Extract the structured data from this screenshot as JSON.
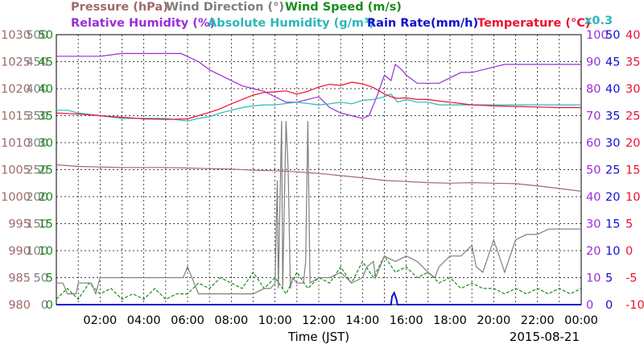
{
  "chart_data": {
    "type": "line",
    "date": "2015-08-21",
    "xlabel": "Time (JST)",
    "x_ticks": [
      "02:00",
      "04:00",
      "06:00",
      "08:00",
      "10:00",
      "12:00",
      "14:00",
      "16:00",
      "18:00",
      "20:00",
      "22:00",
      "00:00"
    ],
    "legend": [
      {
        "id": "pressure",
        "label": "Pressure (hPa)",
        "color": "#a06a6a"
      },
      {
        "id": "wind_direction",
        "label": "Wind Direction (°)",
        "color": "#7f7f7f"
      },
      {
        "id": "wind_speed",
        "label": "Wind Speed (m/s)",
        "color": "#1a8c1a"
      },
      {
        "id": "rh",
        "label": "Relative Humidity (%)",
        "color": "#9a2ed8"
      },
      {
        "id": "ah",
        "label": "Absolute Humidity (g/m³)",
        "color": "#2ab8b8"
      },
      {
        "id": "rain",
        "label": "Rain Rate(mm/h)",
        "color": "#1010d0"
      },
      {
        "id": "temp",
        "label": "Temperature (°C)",
        "color": "#ee1030"
      }
    ],
    "left_axes": [
      {
        "id": "pressure",
        "color": "#a06a6a",
        "min": 980,
        "max": 1030,
        "ticks": [
          "980",
          "985",
          "990",
          "995",
          "1000",
          "1005",
          "1010",
          "1015",
          "1020",
          "1025",
          "1030"
        ]
      },
      {
        "id": "wind_direction",
        "color": "#7f7f7f",
        "min": 0,
        "max": 500,
        "ticks": [
          "0",
          "50",
          "100",
          "150",
          "200",
          "250",
          "300",
          "350",
          "400",
          "450",
          "500"
        ]
      },
      {
        "id": "wind_speed",
        "color": "#1a8c1a",
        "min": 0,
        "max": 50,
        "ticks": [
          "0",
          "5",
          "10",
          "15",
          "20",
          "25",
          "30",
          "35",
          "40",
          "45",
          "50"
        ]
      }
    ],
    "right_axes": [
      {
        "id": "rh",
        "color": "#9a2ed8",
        "min": 0,
        "max": 100,
        "ticks": [
          "0",
          "10",
          "20",
          "30",
          "40",
          "50",
          "60",
          "70",
          "80",
          "90",
          "100"
        ]
      },
      {
        "id": "ah_rain",
        "color": "#1010d0",
        "min": 0,
        "max": 50,
        "ticks": [
          "0",
          "5",
          "10",
          "15",
          "20",
          "25",
          "30",
          "35",
          "40",
          "45",
          "50"
        ]
      },
      {
        "id": "temp",
        "color": "#ee1030",
        "min": -10,
        "max": 40,
        "ticks": [
          "-10",
          "-5",
          "0",
          "5",
          "10",
          "15",
          "20",
          "25",
          "30",
          "35",
          "40"
        ]
      }
    ],
    "ah_scale_note": "x0.3",
    "grid": true,
    "series": [
      {
        "name": "Pressure (hPa)",
        "axis": "pressure",
        "color": "#a06a6a",
        "x": [
          0,
          1,
          2,
          3,
          4,
          5,
          6,
          7,
          8,
          9,
          10,
          11,
          12,
          13,
          14,
          15,
          16,
          17,
          18,
          19,
          20,
          21,
          22,
          23,
          24
        ],
        "y": [
          1005.9,
          1005.6,
          1005.5,
          1005.4,
          1005.4,
          1005.4,
          1005.3,
          1005.2,
          1005.1,
          1004.9,
          1004.8,
          1004.6,
          1004.3,
          1003.9,
          1003.5,
          1003.0,
          1002.8,
          1002.6,
          1002.5,
          1002.6,
          1002.5,
          1002.4,
          1002.0,
          1001.5,
          1001.0
        ]
      },
      {
        "name": "Wind Direction (°)",
        "axis": "wind_direction",
        "color": "#7f7f7f",
        "x": [
          0,
          0.3,
          0.5,
          0.9,
          1.0,
          1.6,
          1.8,
          2.0,
          3.0,
          4.0,
          5.0,
          5.8,
          6.0,
          6.5,
          7.0,
          8.0,
          9.0,
          9.5,
          9.8,
          10.0,
          10.1,
          10.15,
          10.3,
          10.35,
          10.5,
          10.6,
          10.7,
          10.8,
          11.0,
          11.3,
          11.4,
          11.5,
          11.6,
          12.0,
          12.5,
          13.0,
          13.5,
          14.0,
          14.2,
          14.5,
          14.6,
          15.0,
          15.5,
          16.0,
          16.5,
          17.0,
          17.3,
          17.5,
          18.0,
          18.5,
          19.0,
          19.2,
          19.5,
          20.0,
          20.5,
          21.0,
          21.5,
          22.0,
          22.5,
          23.0,
          23.5,
          24.0
        ],
        "y": [
          40,
          40,
          20,
          20,
          40,
          40,
          20,
          50,
          50,
          50,
          50,
          50,
          70,
          20,
          20,
          20,
          20,
          30,
          30,
          40,
          230,
          30,
          340,
          30,
          340,
          250,
          30,
          50,
          40,
          40,
          80,
          340,
          40,
          50,
          50,
          60,
          40,
          50,
          70,
          80,
          50,
          90,
          80,
          90,
          80,
          60,
          50,
          70,
          90,
          90,
          110,
          70,
          60,
          120,
          60,
          120,
          130,
          130,
          140,
          140,
          140,
          140
        ]
      },
      {
        "name": "Wind Speed (m/s)",
        "axis": "wind_speed",
        "color": "#1a8c1a",
        "x": [
          0,
          0.5,
          1,
          1.5,
          2,
          2.5,
          3,
          3.5,
          4,
          4.5,
          5,
          5.5,
          6,
          6.5,
          7,
          7.5,
          8,
          8.5,
          9,
          9.5,
          10,
          10.5,
          11,
          11.5,
          12,
          12.5,
          13,
          13.5,
          14,
          14.5,
          15,
          15.5,
          16,
          16.5,
          17,
          17.5,
          18,
          18.5,
          19,
          19.5,
          20,
          20.5,
          21,
          21.5,
          22,
          22.5,
          23,
          23.5,
          24
        ],
        "y": [
          1,
          3,
          1,
          4,
          2,
          3,
          1,
          2,
          1,
          3,
          1,
          2,
          2,
          4,
          3,
          5,
          4,
          3,
          6,
          3,
          5,
          2,
          6,
          3,
          5,
          4,
          7,
          4,
          8,
          5,
          9,
          6,
          7,
          5,
          6,
          4,
          5,
          3,
          4,
          3,
          3,
          2,
          3,
          2,
          3,
          2,
          3,
          2,
          3
        ]
      },
      {
        "name": "Relative Humidity (%)",
        "axis": "rh",
        "color": "#9a2ed8",
        "x": [
          0,
          1,
          2,
          3,
          4,
          5,
          5.7,
          6.5,
          7,
          7.5,
          8,
          8.5,
          9,
          9.5,
          10,
          10.5,
          11,
          11.5,
          12,
          12.5,
          13,
          13.5,
          14,
          14.3,
          14.7,
          15,
          15.3,
          15.5,
          15.8,
          16,
          16.5,
          17,
          17.5,
          18,
          18.5,
          19,
          19.5,
          20,
          20.5,
          21,
          21.5,
          22,
          22.5,
          23,
          23.5,
          24
        ],
        "y": [
          92,
          92,
          92,
          93,
          93,
          93,
          93,
          90,
          87,
          85,
          83,
          81,
          80,
          79,
          77,
          75,
          75,
          76,
          77,
          73,
          71,
          70,
          69,
          70,
          78,
          85,
          83,
          89,
          87,
          85,
          82,
          82,
          82,
          84,
          86,
          86,
          87,
          88,
          89,
          89,
          89,
          89,
          89,
          89,
          89,
          89
        ]
      },
      {
        "name": "Absolute Humidity (g/m³)",
        "axis": "ah_rain",
        "color": "#2ab8b8",
        "x": [
          0,
          0.5,
          1,
          2,
          3,
          4,
          5,
          6,
          6.5,
          7,
          7.5,
          8,
          8.5,
          9,
          9.5,
          10,
          11,
          12,
          12.5,
          13,
          13.5,
          14,
          14.5,
          15,
          15.3,
          15.6,
          16,
          16.5,
          17,
          17.5,
          18,
          19,
          20,
          21,
          22,
          23,
          24
        ],
        "y": [
          36,
          36,
          35.5,
          35,
          34.5,
          34.5,
          34.5,
          34,
          34.5,
          34.8,
          35.5,
          36,
          36.5,
          36.8,
          37,
          37,
          37.5,
          37,
          37.2,
          37.5,
          37.2,
          37.8,
          38,
          38.5,
          39,
          37.5,
          38,
          37.5,
          37.5,
          37,
          37,
          37,
          37,
          37,
          37,
          37,
          37
        ]
      },
      {
        "name": "Rain Rate(mm/h)",
        "axis": "ah_rain",
        "color": "#1010d0",
        "x": [
          0,
          15.3,
          15.35,
          15.45,
          15.55,
          15.6,
          24
        ],
        "y": [
          0,
          0,
          1.5,
          2.2,
          1.0,
          0,
          0
        ]
      },
      {
        "name": "Temperature (°C)",
        "axis": "temp",
        "color": "#ee1030",
        "x": [
          0,
          1,
          2,
          3,
          4,
          5,
          6,
          6.5,
          7,
          7.5,
          8,
          8.5,
          9,
          9.5,
          10,
          10.5,
          11,
          11.5,
          12,
          12.5,
          13,
          13.5,
          14,
          14.5,
          15,
          15.3,
          15.6,
          16,
          16.5,
          17,
          17.5,
          18,
          19,
          20,
          21,
          22,
          23,
          24
        ],
        "y": [
          25.5,
          25.3,
          25,
          24.7,
          24.4,
          24.3,
          24.4,
          25,
          25.6,
          26.3,
          27.2,
          28,
          28.8,
          29.3,
          29.4,
          29.6,
          29,
          29.5,
          30.3,
          30.8,
          30.6,
          31.2,
          30.9,
          30.2,
          29,
          28.5,
          28.2,
          28.3,
          28.0,
          28.0,
          27.7,
          27.5,
          27.0,
          26.8,
          26.7,
          26.6,
          26.5,
          26.5
        ]
      }
    ]
  }
}
